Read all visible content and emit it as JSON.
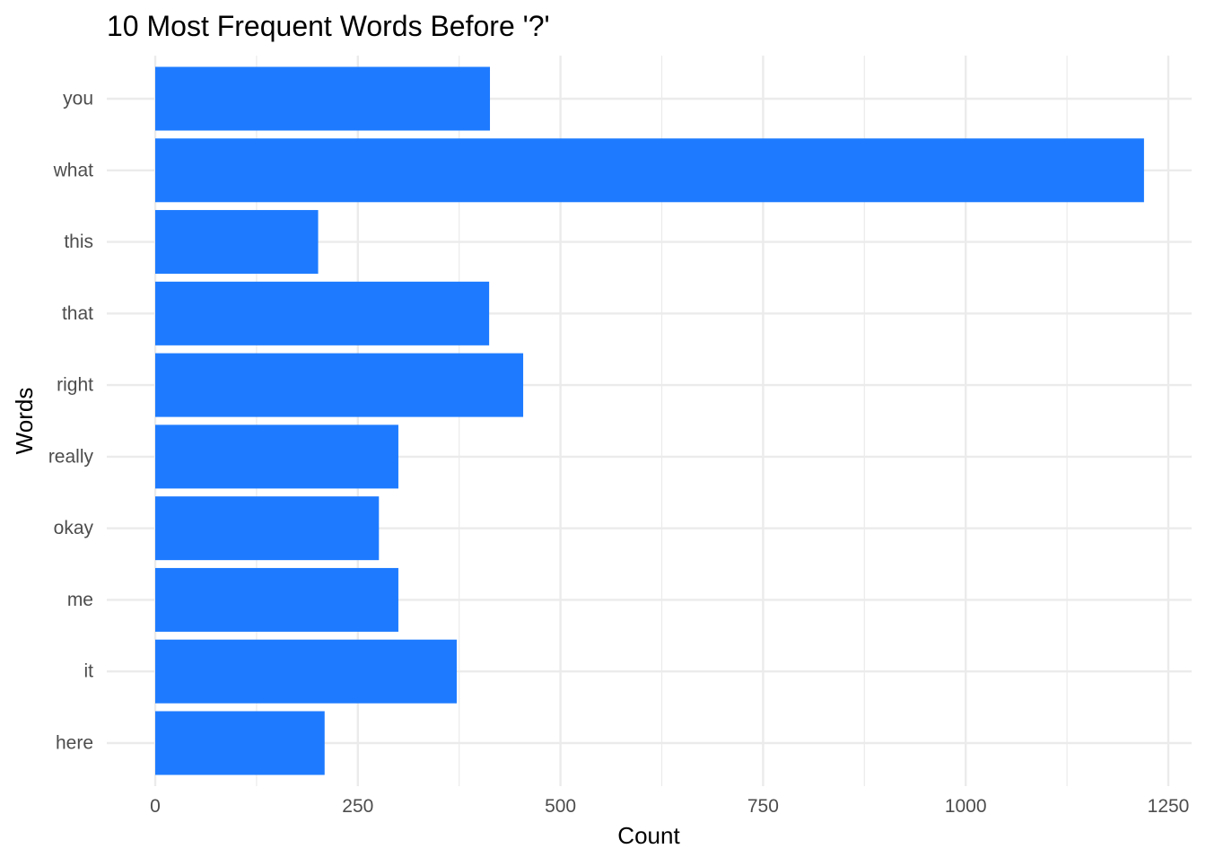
{
  "chart_data": {
    "type": "bar",
    "orientation": "horizontal",
    "title": "10 Most Frequent Words Before '?'",
    "xlabel": "Count",
    "ylabel": "Words",
    "categories": [
      "you",
      "what",
      "this",
      "that",
      "right",
      "really",
      "okay",
      "me",
      "it",
      "here"
    ],
    "values": [
      413,
      1220,
      201,
      412,
      454,
      300,
      276,
      300,
      372,
      209
    ],
    "xlim": [
      0,
      1250
    ],
    "xticks": [
      0,
      250,
      500,
      750,
      1000,
      1250
    ],
    "xtick_labels": [
      "0",
      "250",
      "500",
      "750",
      "1000",
      "1250"
    ],
    "grid": true,
    "bar_color": "#1e7bff",
    "grid_color": "#ebebeb",
    "legend": "none"
  }
}
